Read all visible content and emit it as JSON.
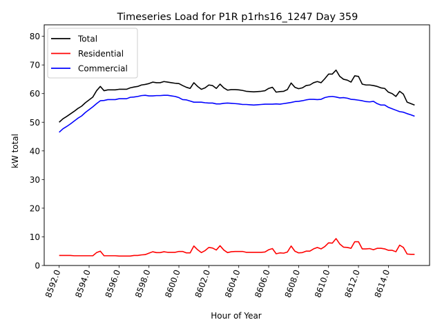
{
  "chart_data": {
    "type": "line",
    "title": "Timeseries Load for P1R p1rhs16_1247  Day 359",
    "xlabel": "Hour of Year",
    "ylabel": "kW total",
    "xlim": [
      8591.0,
      8616.75
    ],
    "ylim": [
      0,
      84
    ],
    "x_start": 8592.0,
    "x_step": 0.25,
    "x_ticks": [
      8592,
      8594,
      8596,
      8598,
      8600,
      8602,
      8604,
      8606,
      8608,
      8610,
      8612,
      8614
    ],
    "x_tick_labels": [
      "8592.0",
      "8594.0",
      "8596.0",
      "8598.0",
      "8600.0",
      "8602.0",
      "8604.0",
      "8606.0",
      "8608.0",
      "8610.0",
      "8612.0",
      "8614.0"
    ],
    "y_ticks": [
      0,
      10,
      20,
      30,
      40,
      50,
      60,
      70,
      80
    ],
    "y_tick_labels": [
      "0",
      "10",
      "20",
      "30",
      "40",
      "50",
      "60",
      "70",
      "80"
    ],
    "legend_position": "top-left",
    "series": [
      {
        "name": "Total",
        "color": "#000000",
        "values": [
          50.0,
          51.2,
          52.0,
          52.9,
          53.8,
          54.8,
          55.6,
          56.8,
          57.8,
          58.8,
          61.0,
          62.5,
          61.0,
          61.3,
          61.3,
          61.3,
          61.5,
          61.5,
          61.5,
          62.0,
          62.3,
          62.5,
          63.0,
          63.2,
          63.5,
          64.0,
          63.8,
          63.8,
          64.2,
          64.0,
          63.8,
          63.6,
          63.5,
          62.8,
          62.2,
          61.8,
          63.8,
          62.5,
          61.5,
          62.0,
          63.0,
          62.8,
          61.8,
          63.3,
          62.0,
          61.2,
          61.4,
          61.4,
          61.3,
          61.1,
          60.8,
          60.7,
          60.6,
          60.7,
          60.8,
          61.0,
          61.8,
          62.2,
          60.5,
          60.7,
          60.8,
          61.4,
          63.7,
          62.2,
          61.7,
          62.0,
          62.8,
          63.0,
          63.8,
          64.2,
          63.8,
          65.2,
          66.8,
          66.8,
          68.2,
          66.0,
          65.0,
          64.7,
          64.0,
          66.2,
          66.0,
          63.3,
          63.0,
          63.0,
          62.8,
          62.5,
          62.0,
          61.8,
          60.5,
          60.0,
          59.0,
          60.8,
          59.8,
          57.0,
          56.5,
          56.0
        ]
      },
      {
        "name": "Residential",
        "color": "#ff0000",
        "values": [
          3.5,
          3.5,
          3.5,
          3.5,
          3.4,
          3.4,
          3.4,
          3.4,
          3.4,
          3.4,
          4.5,
          5.0,
          3.4,
          3.4,
          3.4,
          3.4,
          3.3,
          3.3,
          3.3,
          3.3,
          3.5,
          3.5,
          3.7,
          3.8,
          4.3,
          4.8,
          4.5,
          4.5,
          4.8,
          4.6,
          4.6,
          4.6,
          4.9,
          4.9,
          4.4,
          4.4,
          6.8,
          5.5,
          4.5,
          5.2,
          6.3,
          6.1,
          5.4,
          6.9,
          5.4,
          4.5,
          4.8,
          4.9,
          4.9,
          4.9,
          4.6,
          4.6,
          4.6,
          4.6,
          4.6,
          4.7,
          5.5,
          5.9,
          4.1,
          4.4,
          4.3,
          4.7,
          6.8,
          5.0,
          4.4,
          4.5,
          5.0,
          5.0,
          5.8,
          6.3,
          5.8,
          6.6,
          7.9,
          7.8,
          9.4,
          7.5,
          6.4,
          6.3,
          6.0,
          8.3,
          8.3,
          5.8,
          5.8,
          5.9,
          5.5,
          6.0,
          6.0,
          5.8,
          5.3,
          5.3,
          4.8,
          7.1,
          6.3,
          4.0,
          3.9,
          3.9
        ]
      },
      {
        "name": "Commercial",
        "color": "#0000ff",
        "values": [
          46.5,
          47.7,
          48.5,
          49.4,
          50.4,
          51.4,
          52.2,
          53.4,
          54.4,
          55.4,
          56.5,
          57.5,
          57.6,
          57.9,
          57.9,
          57.9,
          58.2,
          58.2,
          58.2,
          58.7,
          58.8,
          59.0,
          59.3,
          59.4,
          59.2,
          59.2,
          59.3,
          59.3,
          59.4,
          59.4,
          59.2,
          59.0,
          58.6,
          57.9,
          57.8,
          57.4,
          57.0,
          57.0,
          57.0,
          56.8,
          56.7,
          56.7,
          56.4,
          56.4,
          56.6,
          56.7,
          56.6,
          56.5,
          56.4,
          56.2,
          56.2,
          56.1,
          56.0,
          56.1,
          56.2,
          56.3,
          56.3,
          56.3,
          56.4,
          56.3,
          56.5,
          56.7,
          56.9,
          57.2,
          57.3,
          57.5,
          57.8,
          58.0,
          58.0,
          57.9,
          58.0,
          58.6,
          58.9,
          59.0,
          58.8,
          58.5,
          58.6,
          58.4,
          58.0,
          57.9,
          57.7,
          57.5,
          57.2,
          57.1,
          57.3,
          56.5,
          56.0,
          56.0,
          55.2,
          54.7,
          54.2,
          53.7,
          53.5,
          53.0,
          52.6,
          52.1
        ]
      }
    ]
  }
}
